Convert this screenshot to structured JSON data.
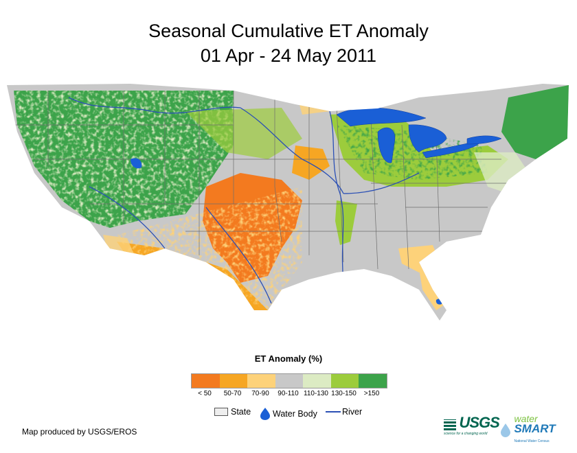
{
  "title": {
    "line1": "Seasonal Cumulative ET Anomaly",
    "line2": "01 Apr - 24 May 2011"
  },
  "legend": {
    "title": "ET Anomaly (%)",
    "classes": [
      {
        "label": "< 50",
        "color": "#f37a1f"
      },
      {
        "label": "50-70",
        "color": "#f6a623"
      },
      {
        "label": "70-90",
        "color": "#fdd27a"
      },
      {
        "label": "90-110",
        "color": "#c8c8c8"
      },
      {
        "label": "110-130",
        "color": "#dcebc3"
      },
      {
        "label": "130-150",
        "color": "#9ccc3c"
      },
      {
        "label": ">150",
        "color": "#3ca34a"
      }
    ],
    "keys": {
      "state": "State",
      "water_body": "Water Body",
      "river": "River"
    }
  },
  "credit": "Map produced by USGS/EROS",
  "logos": {
    "usgs": "USGS",
    "usgs_tagline": "science for a changing world",
    "water": "water",
    "smart": "SMART",
    "smart_sub": "National Water Census"
  },
  "colors": {
    "water": "#1a5fd6",
    "river": "#2a4fb5",
    "state_border": "#6e6e6e"
  }
}
